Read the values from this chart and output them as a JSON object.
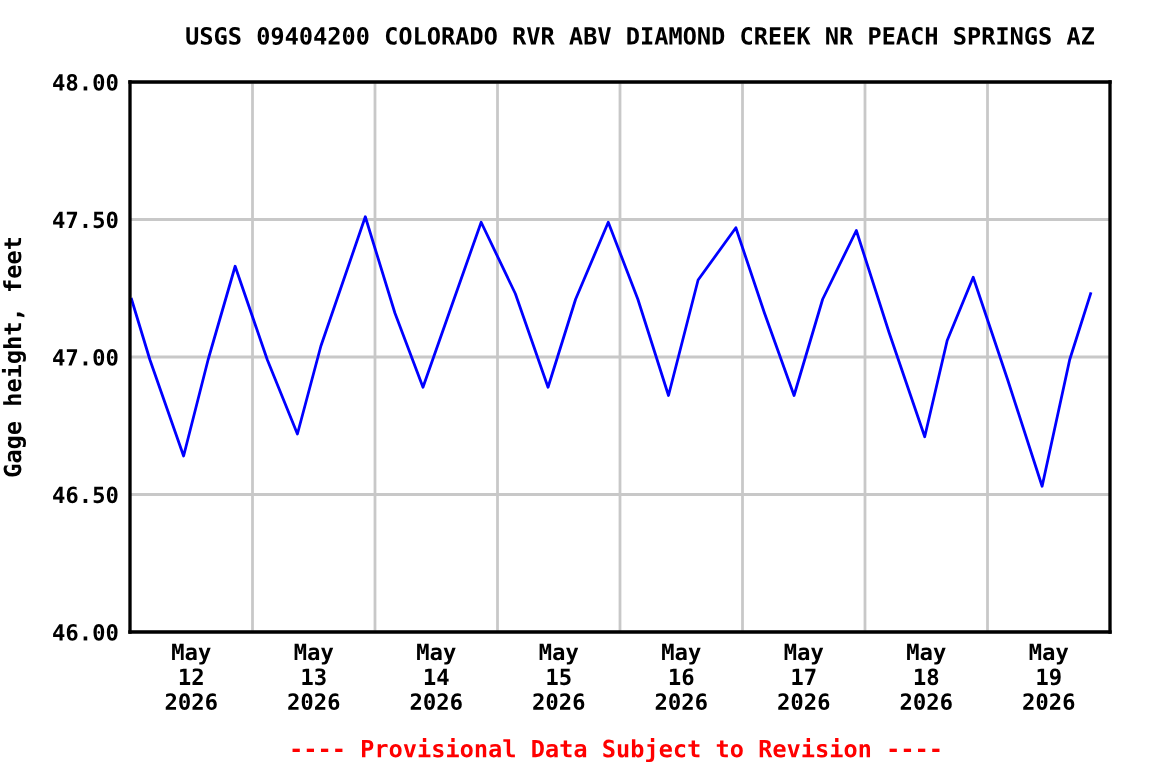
{
  "chart_data": {
    "type": "line",
    "title": "USGS 09404200 COLORADO RVR ABV DIAMOND CREEK NR PEACH SPRINGS AZ",
    "ylabel": "Gage height, feet",
    "annotations": [
      "---- Provisional Data Subject to Revision ----"
    ],
    "x": [
      "2026-05-12T00:18",
      "2026-05-12T03:54",
      "2026-05-12T10:30",
      "2026-05-12T15:18",
      "2026-05-12T20:36",
      "2026-05-13T02:54",
      "2026-05-13T08:48",
      "2026-05-13T13:24",
      "2026-05-13T22:06",
      "2026-05-14T03:54",
      "2026-05-14T09:24",
      "2026-05-14T14:54",
      "2026-05-14T20:48",
      "2026-05-15T03:30",
      "2026-05-15T09:54",
      "2026-05-15T15:18",
      "2026-05-15T21:42",
      "2026-05-16T03:30",
      "2026-05-16T09:30",
      "2026-05-16T15:18",
      "2026-05-16T22:42",
      "2026-05-17T04:18",
      "2026-05-17T10:06",
      "2026-05-17T15:42",
      "2026-05-17T22:18",
      "2026-05-18T04:42",
      "2026-05-18T11:42",
      "2026-05-18T16:06",
      "2026-05-18T21:12",
      "2026-05-19T03:54",
      "2026-05-19T10:42",
      "2026-05-19T16:06",
      "2026-05-19T20:12"
    ],
    "series": [
      {
        "color": "#0000ff",
        "values": [
          47.21,
          46.99,
          46.64,
          46.99,
          47.33,
          46.99,
          46.72,
          47.04,
          47.51,
          47.16,
          46.89,
          47.18,
          47.49,
          47.23,
          46.89,
          47.21,
          47.49,
          47.21,
          46.86,
          47.28,
          47.47,
          47.16,
          46.86,
          47.21,
          47.46,
          47.09,
          46.71,
          47.06,
          47.29,
          46.92,
          46.53,
          46.99,
          47.23
        ]
      }
    ],
    "xlim": [
      "2026-05-12T00:00",
      "2026-05-20T00:00"
    ],
    "xticks": [
      {
        "value": "2026-05-12T12:00",
        "label": "May\n12\n2026"
      },
      {
        "value": "2026-05-13T00:00",
        "label": null
      },
      {
        "value": "2026-05-13T12:00",
        "label": "May\n13\n2026"
      },
      {
        "value": "2026-05-14T00:00",
        "label": null
      },
      {
        "value": "2026-05-14T12:00",
        "label": "May\n14\n2026"
      },
      {
        "value": "2026-05-15T00:00",
        "label": null
      },
      {
        "value": "2026-05-15T12:00",
        "label": "May\n15\n2026"
      },
      {
        "value": "2026-05-16T00:00",
        "label": null
      },
      {
        "value": "2026-05-16T12:00",
        "label": "May\n16\n2026"
      },
      {
        "value": "2026-05-17T00:00",
        "label": null
      },
      {
        "value": "2026-05-17T12:00",
        "label": "May\n17\n2026"
      },
      {
        "value": "2026-05-18T00:00",
        "label": null
      },
      {
        "value": "2026-05-18T12:00",
        "label": "May\n18\n2026"
      },
      {
        "value": "2026-05-19T00:00",
        "label": null
      },
      {
        "value": "2026-05-19T12:00",
        "label": "May\n19\n2026"
      }
    ],
    "ylim": [
      46,
      48
    ],
    "yticks": [
      {
        "value": 46,
        "label": "46.00"
      },
      {
        "value": 46.5,
        "label": "46.50"
      },
      {
        "value": 47,
        "label": "47.00"
      },
      {
        "value": 47.5,
        "label": "47.50"
      },
      {
        "value": 48,
        "label": "48.00"
      }
    ],
    "grid": true
  }
}
